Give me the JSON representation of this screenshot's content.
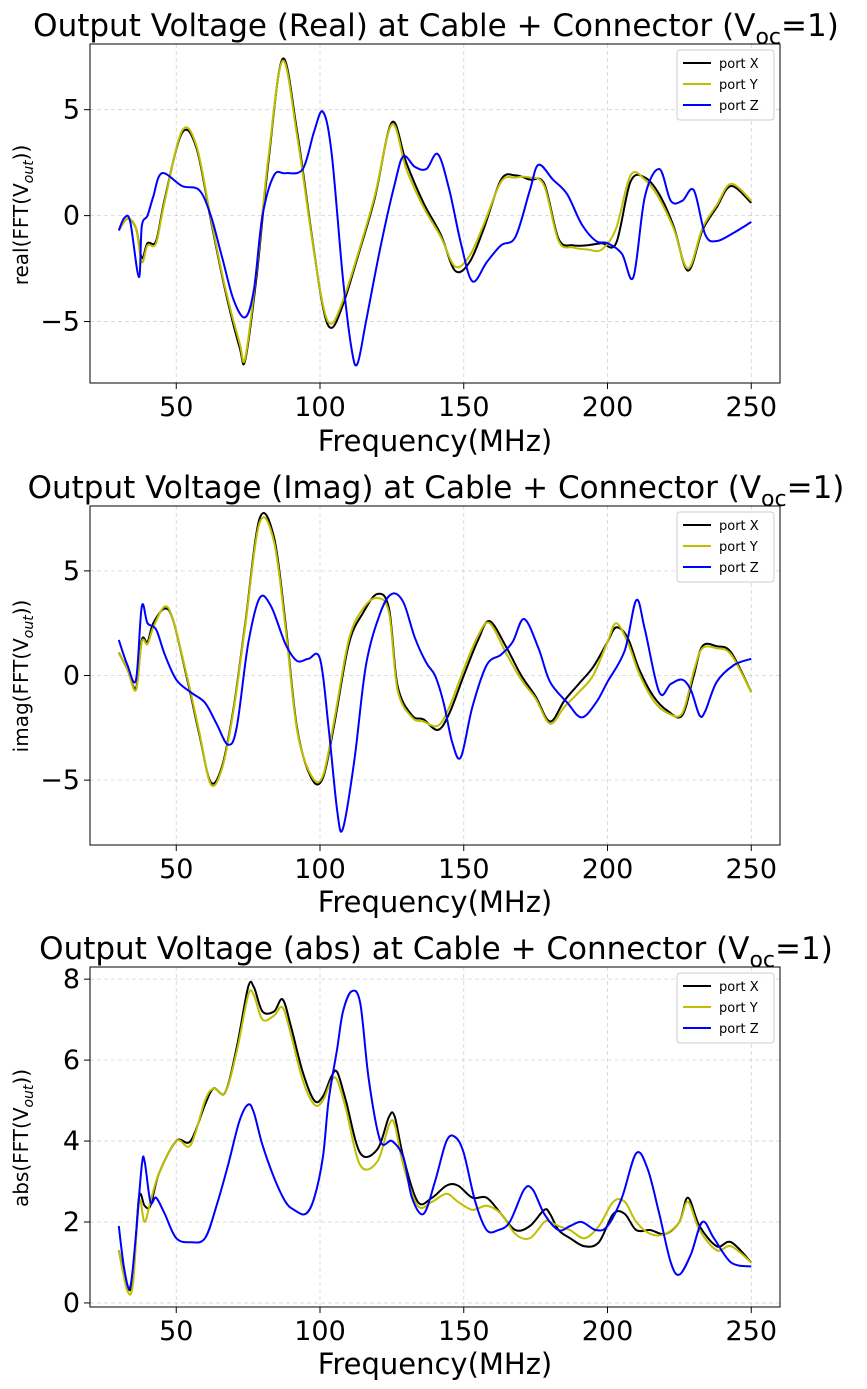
{
  "chart_data": [
    {
      "type": "line",
      "title_main": "Output Voltage (Real) at Cable + Connector (V",
      "title_sub": "oc",
      "title_end": "=1)",
      "xlabel": "Frequency(MHz)",
      "ylabel_main": "real(FFT(V",
      "ylabel_sub": "out",
      "ylabel_end": "))",
      "xlim": [
        20,
        260
      ],
      "ylim": [
        -7.9,
        8.1
      ],
      "xticks": [
        50,
        100,
        150,
        200,
        250
      ],
      "yticks": [
        -5,
        0,
        5
      ],
      "ytick_labels": [
        "−5",
        "0",
        "5"
      ],
      "grid": true,
      "legend": "top-right",
      "series": [
        {
          "name": "port X",
          "color": "#000000",
          "x": [
            30,
            33,
            36,
            38,
            40,
            43,
            46,
            52,
            57,
            62,
            67,
            72,
            74,
            78,
            82,
            87,
            92,
            97,
            101,
            104,
            108,
            113,
            119,
            125,
            130,
            136,
            142,
            147,
            152,
            157,
            163,
            168,
            173,
            178,
            183,
            188,
            193,
            198,
            203,
            208,
            213,
            218,
            223,
            228,
            233,
            238,
            243,
            250
          ],
          "y": [
            -0.7,
            -0.15,
            -0.6,
            -2.0,
            -1.3,
            -1.2,
            0.8,
            3.9,
            3.2,
            -0.2,
            -3.5,
            -6.2,
            -6.8,
            -2.8,
            2.5,
            7.4,
            4.0,
            -0.8,
            -4.3,
            -5.3,
            -4.2,
            -2.0,
            0.8,
            4.4,
            2.5,
            0.6,
            -0.9,
            -2.6,
            -2.2,
            -0.6,
            1.7,
            1.9,
            1.7,
            1.5,
            -1.1,
            -1.4,
            -1.4,
            -1.3,
            -1.3,
            1.6,
            1.8,
            1.0,
            -0.5,
            -2.6,
            -0.7,
            0.4,
            1.4,
            0.6
          ]
        },
        {
          "name": "port Y",
          "color": "#bfbf00",
          "x": [
            30,
            33,
            36,
            38,
            40,
            43,
            46,
            52,
            57,
            62,
            67,
            72,
            74,
            78,
            82,
            87,
            92,
            97,
            101,
            104,
            108,
            113,
            119,
            125,
            130,
            136,
            142,
            147,
            152,
            157,
            163,
            168,
            173,
            178,
            183,
            188,
            193,
            198,
            203,
            208,
            213,
            218,
            223,
            228,
            233,
            238,
            243,
            250
          ],
          "y": [
            -0.7,
            -0.15,
            -0.6,
            -2.2,
            -1.4,
            -1.3,
            0.7,
            4.0,
            3.3,
            -0.1,
            -3.4,
            -6.0,
            -6.7,
            -2.5,
            2.7,
            7.3,
            3.8,
            -0.9,
            -4.2,
            -5.1,
            -4.0,
            -1.9,
            0.9,
            4.3,
            2.2,
            0.4,
            -1.0,
            -2.4,
            -1.9,
            -0.4,
            1.6,
            1.8,
            1.8,
            1.4,
            -1.2,
            -1.5,
            -1.6,
            -1.6,
            -0.6,
            1.9,
            1.7,
            0.8,
            -0.6,
            -2.5,
            -0.6,
            0.5,
            1.5,
            0.7
          ]
        },
        {
          "name": "port Z",
          "color": "#0000ff",
          "x": [
            30,
            32,
            34,
            37,
            38,
            40,
            42,
            45,
            52,
            58,
            62,
            66,
            70,
            74,
            77,
            80,
            84,
            88,
            94,
            98,
            101,
            104,
            108,
            111,
            113,
            116,
            121,
            126,
            129,
            133,
            137,
            141,
            145,
            149,
            153,
            158,
            163,
            168,
            173,
            176,
            181,
            186,
            191,
            196,
            200,
            205,
            209,
            213,
            218,
            222,
            226,
            230,
            234,
            238,
            244,
            250
          ],
          "y": [
            -0.7,
            -0.1,
            -0.3,
            -2.9,
            -0.5,
            0.0,
            0.9,
            2.0,
            1.4,
            1.2,
            0.0,
            -2.0,
            -4.0,
            -4.8,
            -3.5,
            0.0,
            1.9,
            2.0,
            2.2,
            4.0,
            4.9,
            3.0,
            -3.0,
            -6.3,
            -7.0,
            -5.0,
            -1.5,
            1.5,
            2.8,
            2.3,
            2.2,
            2.9,
            1.2,
            -1.3,
            -3.1,
            -2.2,
            -1.4,
            -1.0,
            1.2,
            2.4,
            1.7,
            1.0,
            -0.4,
            -1.2,
            -1.3,
            -1.8,
            -2.9,
            0.9,
            2.2,
            0.7,
            0.7,
            1.2,
            -0.9,
            -1.2,
            -0.8,
            -0.3
          ]
        }
      ]
    },
    {
      "type": "line",
      "title_main": "Output Voltage (Imag) at Cable + Connector (V",
      "title_sub": "oc",
      "title_end": "=1)",
      "xlabel": "Frequency(MHz)",
      "ylabel_main": "imag(FFT(V",
      "ylabel_sub": "out",
      "ylabel_end": "))",
      "xlim": [
        20,
        260
      ],
      "ylim": [
        -8.1,
        8.1
      ],
      "xticks": [
        50,
        100,
        150,
        200,
        250
      ],
      "yticks": [
        -5,
        0,
        5
      ],
      "ytick_labels": [
        "−5",
        "0",
        "5"
      ],
      "grid": true,
      "legend": "top-right",
      "series": [
        {
          "name": "port X",
          "color": "#000000",
          "x": [
            30,
            33,
            36,
            38,
            40,
            42,
            46,
            49,
            54,
            58,
            62,
            66,
            70,
            74,
            79,
            84,
            88,
            92,
            97,
            101,
            105,
            110,
            115,
            120,
            124,
            127,
            132,
            136,
            141,
            145,
            150,
            155,
            159,
            165,
            170,
            175,
            180,
            185,
            190,
            195,
            200,
            203,
            207,
            211,
            216,
            221,
            226,
            230,
            233,
            238,
            243,
            250
          ],
          "y": [
            1.1,
            0.3,
            -0.6,
            1.7,
            1.6,
            2.5,
            3.2,
            2.6,
            -0.3,
            -2.8,
            -5.1,
            -4.3,
            -1.5,
            2.5,
            7.5,
            6.6,
            2.5,
            -2.5,
            -4.9,
            -4.9,
            -2.3,
            1.5,
            3.0,
            3.9,
            3.2,
            -0.5,
            -1.9,
            -2.1,
            -2.6,
            -1.8,
            0.0,
            1.7,
            2.6,
            1.3,
            0.0,
            -1.0,
            -2.2,
            -1.2,
            -0.4,
            0.4,
            1.6,
            2.3,
            1.8,
            0.3,
            -1.0,
            -1.7,
            -1.9,
            0.0,
            1.4,
            1.4,
            1.1,
            -0.8
          ]
        },
        {
          "name": "port Y",
          "color": "#bfbf00",
          "x": [
            30,
            33,
            36,
            38,
            40,
            42,
            46,
            49,
            54,
            58,
            62,
            66,
            70,
            74,
            79,
            84,
            88,
            92,
            97,
            101,
            105,
            110,
            115,
            120,
            124,
            127,
            132,
            136,
            141,
            145,
            150,
            155,
            159,
            165,
            170,
            175,
            180,
            185,
            190,
            195,
            200,
            203,
            207,
            211,
            216,
            221,
            226,
            230,
            233,
            238,
            243,
            250
          ],
          "y": [
            1.1,
            0.3,
            -0.7,
            1.6,
            1.5,
            2.3,
            3.3,
            2.6,
            -0.2,
            -2.7,
            -5.2,
            -4.4,
            -1.6,
            2.4,
            7.3,
            6.4,
            2.3,
            -2.6,
            -4.8,
            -4.8,
            -2.1,
            1.7,
            3.2,
            3.7,
            3.0,
            -0.7,
            -2.0,
            -2.2,
            -2.4,
            -1.5,
            0.3,
            1.9,
            2.5,
            1.0,
            -0.2,
            -1.1,
            -2.3,
            -1.5,
            -0.8,
            0.0,
            1.6,
            2.5,
            1.6,
            0.1,
            -1.2,
            -1.8,
            -1.8,
            0.2,
            1.3,
            1.3,
            1.0,
            -0.8
          ]
        },
        {
          "name": "port Z",
          "color": "#0000ff",
          "x": [
            30,
            33,
            36,
            38,
            40,
            43,
            46,
            50,
            55,
            60,
            64,
            68,
            71,
            75,
            79,
            83,
            88,
            92,
            96,
            100,
            103,
            106,
            108,
            112,
            116,
            121,
            125,
            129,
            133,
            137,
            140,
            143,
            146,
            149,
            153,
            158,
            163,
            167,
            171,
            176,
            180,
            186,
            191,
            196,
            200,
            206,
            210,
            213,
            218,
            222,
            226,
            229,
            232,
            234,
            238,
            244,
            250
          ],
          "y": [
            1.7,
            0.5,
            -0.2,
            3.3,
            2.5,
            2.2,
            1.0,
            -0.2,
            -0.8,
            -1.3,
            -2.3,
            -3.3,
            -2.5,
            1.5,
            3.7,
            3.3,
            1.5,
            0.7,
            0.8,
            0.8,
            -2.5,
            -6.5,
            -7.3,
            -4.0,
            0.5,
            3.0,
            3.9,
            3.5,
            1.8,
            0.6,
            0.0,
            -1.3,
            -3.2,
            -3.9,
            -1.5,
            0.5,
            1.0,
            1.6,
            2.7,
            1.3,
            -0.3,
            -1.3,
            -2.0,
            -1.3,
            -0.3,
            1.2,
            3.6,
            2.2,
            -0.8,
            -0.4,
            -0.2,
            -0.7,
            -1.9,
            -1.7,
            -0.3,
            0.5,
            0.8
          ]
        }
      ]
    },
    {
      "type": "line",
      "title_main": "Output Voltage (abs) at Cable + Connector (V",
      "title_sub": "oc",
      "title_end": "=1)",
      "xlabel": "Frequency(MHz)",
      "ylabel_main": "abs(FFT(V",
      "ylabel_sub": "out",
      "ylabel_end": "))",
      "xlim": [
        20,
        260
      ],
      "ylim": [
        -0.1,
        8.3
      ],
      "xticks": [
        50,
        100,
        150,
        200,
        250
      ],
      "yticks": [
        0,
        2,
        4,
        6,
        8
      ],
      "ytick_labels": [
        "0",
        "2",
        "4",
        "6",
        "8"
      ],
      "grid": true,
      "legend": "top-right",
      "series": [
        {
          "name": "port X",
          "color": "#000000",
          "x": [
            30,
            33,
            35,
            37,
            39,
            41,
            44,
            50,
            55,
            60,
            63,
            67,
            71,
            75,
            77,
            80,
            84,
            87,
            90,
            94,
            98,
            101,
            104,
            106,
            109,
            114,
            120,
            124,
            126,
            129,
            134,
            139,
            144,
            148,
            153,
            158,
            163,
            168,
            173,
            178,
            180,
            183,
            187,
            192,
            197,
            202,
            206,
            210,
            215,
            220,
            225,
            228,
            232,
            238,
            243,
            250
          ],
          "y": [
            1.3,
            0.4,
            0.6,
            2.6,
            2.4,
            2.4,
            3.2,
            4.0,
            4.0,
            4.9,
            5.3,
            5.2,
            6.3,
            7.8,
            7.8,
            7.2,
            7.2,
            7.5,
            6.8,
            5.7,
            5.0,
            5.1,
            5.6,
            5.7,
            5.0,
            3.7,
            3.8,
            4.6,
            4.6,
            3.6,
            2.5,
            2.6,
            2.9,
            2.9,
            2.6,
            2.6,
            2.2,
            1.8,
            1.9,
            2.3,
            2.2,
            1.8,
            1.6,
            1.4,
            1.5,
            2.2,
            2.2,
            1.8,
            1.8,
            1.7,
            2.0,
            2.6,
            1.9,
            1.4,
            1.5,
            1.0
          ]
        },
        {
          "name": "port Y",
          "color": "#bfbf00",
          "x": [
            30,
            33,
            35,
            37,
            39,
            41,
            44,
            50,
            55,
            60,
            63,
            67,
            71,
            75,
            77,
            80,
            84,
            87,
            90,
            94,
            98,
            101,
            104,
            106,
            109,
            114,
            120,
            124,
            126,
            129,
            134,
            139,
            144,
            148,
            153,
            158,
            163,
            168,
            173,
            178,
            180,
            183,
            187,
            192,
            197,
            202,
            206,
            210,
            215,
            220,
            225,
            228,
            232,
            238,
            243,
            250
          ],
          "y": [
            1.3,
            0.3,
            0.5,
            2.5,
            2.0,
            2.5,
            3.2,
            4.0,
            3.9,
            5.0,
            5.3,
            5.2,
            6.2,
            7.6,
            7.6,
            7.0,
            7.1,
            7.3,
            6.6,
            5.5,
            4.9,
            5.0,
            5.5,
            5.5,
            4.8,
            3.4,
            3.5,
            4.4,
            4.4,
            3.4,
            2.4,
            2.5,
            2.7,
            2.5,
            2.3,
            2.4,
            2.2,
            1.7,
            1.6,
            2.0,
            2.0,
            1.9,
            1.8,
            1.6,
            1.9,
            2.5,
            2.5,
            2.0,
            1.7,
            1.7,
            2.0,
            2.5,
            1.8,
            1.3,
            1.4,
            1.0
          ]
        },
        {
          "name": "port Z",
          "color": "#0000ff",
          "x": [
            30,
            32,
            34,
            36,
            38,
            39,
            41,
            43,
            46,
            50,
            55,
            60,
            64,
            68,
            72,
            75,
            77,
            80,
            84,
            88,
            91,
            95,
            98,
            101,
            103,
            106,
            108,
            111,
            114,
            117,
            121,
            125,
            129,
            132,
            136,
            140,
            144,
            147,
            150,
            154,
            158,
            162,
            166,
            171,
            174,
            178,
            183,
            187,
            191,
            196,
            200,
            205,
            210,
            214,
            218,
            222,
            225,
            229,
            233,
            237,
            243,
            250
          ],
          "y": [
            1.9,
            0.8,
            0.4,
            1.7,
            3.4,
            3.5,
            2.5,
            2.6,
            2.2,
            1.6,
            1.5,
            1.6,
            2.4,
            3.4,
            4.5,
            4.9,
            4.7,
            3.9,
            3.1,
            2.5,
            2.3,
            2.2,
            2.6,
            3.6,
            5.0,
            6.3,
            7.2,
            7.7,
            7.4,
            5.5,
            4.0,
            4.0,
            3.6,
            2.6,
            2.2,
            3.0,
            4.0,
            4.1,
            3.7,
            2.5,
            1.8,
            1.8,
            2.0,
            2.8,
            2.8,
            2.2,
            1.8,
            1.9,
            2.0,
            1.8,
            1.9,
            2.6,
            3.7,
            3.3,
            2.2,
            1.0,
            0.7,
            1.2,
            2.0,
            1.6,
            1.0,
            0.9
          ]
        }
      ]
    }
  ]
}
